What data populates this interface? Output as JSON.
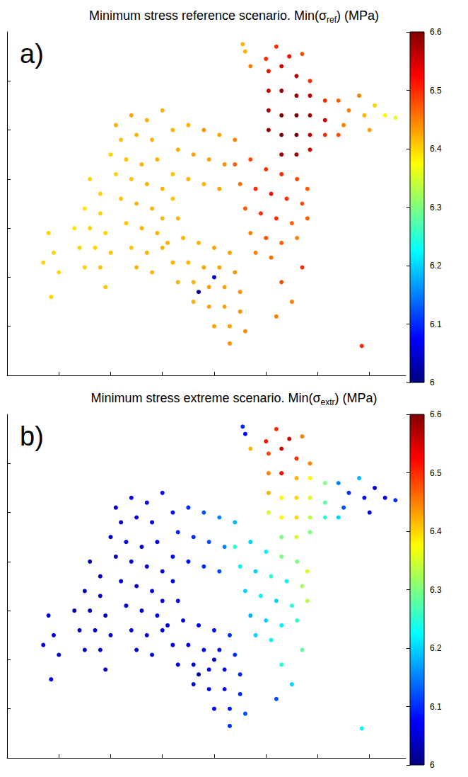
{
  "chart_data": [
    {
      "type": "scatter",
      "title": "Minimum stress reference scenario. Min(σref) (MPa)",
      "panel": "a)",
      "x": [
        5.05,
        5.3,
        5.59,
        5.85,
        5.05,
        5.3,
        5.59,
        5.85,
        6.14,
        5.05,
        5.3,
        5.59,
        5.85,
        6.14,
        5.05,
        5.3,
        5.59,
        5.85,
        6.14,
        5.3,
        5.59,
        5.85,
        5.2,
        5.45,
        5.7,
        5.0,
        4.7,
        6.4,
        6.6,
        6.8,
        6.9,
        7.1,
        7.3,
        7.5,
        6.5,
        7.0,
        6.4,
        4.4,
        4.7,
        5.0,
        5.3,
        5.6,
        5.8,
        4.5,
        4.8,
        5.1,
        5.4,
        5.7,
        4.6,
        4.9,
        5.2,
        5.5,
        5.8,
        4.7,
        5.0,
        5.3,
        5.6,
        4.8,
        5.1,
        5.3,
        5.7,
        5.5,
        6.85,
        5.2,
        3.2,
        3.5,
        3.8,
        4.1,
        4.4,
        3.3,
        3.6,
        3.9,
        4.2,
        3.2,
        3.5,
        3.8,
        4.1,
        3.2,
        3.3,
        4.55,
        4.6,
        2.1,
        2.4,
        2.7,
        3.0,
        2.2,
        2.5,
        2.8,
        2.0,
        2.3,
        2.6,
        2.9,
        2.1,
        2.4,
        2.7,
        3.0,
        2.2,
        2.5,
        2.8,
        3.0,
        2.3,
        2.6,
        2.9,
        2.4,
        2.7,
        3.0,
        2.5,
        2.8,
        1.6,
        1.8,
        1.5,
        1.8,
        1.3,
        1.6,
        1.9,
        1.4,
        1.7,
        2.0,
        1.5,
        1.8,
        0.8,
        0.9,
        1.0,
        0.7,
        1.9,
        0.85,
        3.1,
        3.4,
        3.7,
        4.0,
        4.3,
        3.2,
        3.5,
        3.8,
        4.1,
        4.4,
        3.3,
        3.6,
        3.9,
        4.2,
        4.5,
        3.6,
        3.9,
        4.2,
        4.5,
        4.0,
        4.3,
        4.6,
        4.3,
        3.7,
        4.0
      ],
      "y": [
        6.2,
        6.3,
        6.1,
        6.0,
        5.8,
        5.8,
        5.7,
        5.7,
        5.6,
        5.4,
        5.3,
        5.3,
        5.3,
        5.2,
        5.0,
        4.9,
        4.9,
        4.9,
        4.9,
        4.5,
        4.5,
        4.6,
        6.7,
        6.5,
        6.55,
        6.45,
        6.3,
        5.6,
        5.4,
        5.7,
        5.3,
        5.5,
        5.3,
        5.25,
        5.1,
        5.0,
        4.9,
        4.3,
        4.4,
        4.2,
        4.1,
        4.0,
        3.8,
        3.9,
        3.8,
        3.7,
        3.6,
        3.5,
        3.4,
        3.3,
        3.2,
        3.1,
        3.2,
        2.9,
        2.8,
        2.7,
        2.8,
        2.5,
        2.4,
        1.9,
        2.2,
        1.5,
        0.6,
        1.2,
        5.0,
        5.1,
        5.0,
        4.9,
        4.8,
        4.6,
        4.5,
        4.4,
        4.3,
        4.1,
        4.0,
        3.9,
        3.8,
        3.6,
        3.2,
        6.75,
        6.6,
        5.1,
        5.3,
        5.2,
        5.4,
        4.8,
        4.9,
        4.8,
        4.5,
        4.4,
        4.3,
        4.4,
        4.1,
        4.0,
        3.9,
        3.8,
        3.6,
        3.5,
        3.4,
        3.2,
        3.1,
        3.0,
        2.9,
        2.6,
        2.5,
        2.6,
        2.2,
        2.1,
        4.0,
        3.7,
        3.4,
        3.3,
        3.0,
        3.0,
        2.9,
        2.6,
        2.6,
        2.5,
        2.2,
        2.2,
        2.9,
        2.5,
        2.1,
        2.3,
        1.8,
        1.6,
        2.7,
        2.8,
        2.7,
        2.6,
        2.5,
        2.3,
        2.3,
        2.2,
        2.2,
        2.1,
        1.9,
        1.9,
        1.8,
        1.8,
        1.7,
        1.5,
        1.4,
        1.4,
        1.3,
        1.0,
        1.0,
        0.9,
        0.65,
        1.7,
        2.0
      ],
      "values": [
        6.52,
        6.55,
        6.56,
        6.5,
        6.56,
        6.58,
        6.58,
        6.57,
        6.5,
        6.57,
        6.6,
        6.6,
        6.58,
        6.55,
        6.58,
        6.6,
        6.6,
        6.57,
        6.5,
        6.58,
        6.58,
        6.55,
        6.5,
        6.52,
        6.48,
        6.5,
        6.45,
        6.47,
        6.45,
        6.45,
        6.42,
        6.4,
        6.38,
        6.36,
        6.45,
        6.43,
        6.48,
        6.47,
        6.48,
        6.5,
        6.5,
        6.48,
        6.47,
        6.46,
        6.5,
        6.52,
        6.5,
        6.48,
        6.47,
        6.5,
        6.5,
        6.47,
        6.47,
        6.45,
        6.48,
        6.47,
        6.45,
        6.45,
        6.46,
        6.48,
        6.5,
        6.45,
        6.5,
        6.45,
        6.42,
        6.42,
        6.44,
        6.43,
        6.45,
        6.42,
        6.43,
        6.43,
        6.44,
        6.41,
        6.42,
        6.42,
        6.43,
        6.41,
        6.42,
        6.42,
        6.42,
        6.42,
        6.43,
        6.42,
        6.42,
        6.41,
        6.42,
        6.42,
        6.4,
        6.41,
        6.42,
        6.42,
        6.4,
        6.41,
        6.42,
        6.42,
        6.41,
        6.42,
        6.42,
        6.42,
        6.41,
        6.42,
        6.42,
        6.41,
        6.42,
        6.42,
        6.42,
        6.42,
        6.4,
        6.4,
        6.39,
        6.4,
        6.39,
        6.4,
        6.4,
        6.4,
        6.4,
        6.41,
        6.4,
        6.41,
        6.4,
        6.4,
        6.4,
        6.4,
        6.41,
        6.4,
        6.42,
        6.42,
        6.42,
        6.43,
        6.43,
        6.42,
        6.42,
        6.43,
        6.43,
        6.44,
        6.42,
        6.42,
        6.43,
        6.43,
        6.44,
        6.42,
        6.43,
        6.43,
        6.44,
        6.43,
        6.43,
        6.44,
        6.44,
        6.02,
        6.05
      ],
      "xlim": [
        0,
        7.7
      ],
      "ylim": [
        0,
        7
      ],
      "xticks": [
        1,
        2,
        3,
        4,
        5,
        6,
        7
      ],
      "yticks": [
        1,
        2,
        3,
        4,
        5,
        6
      ],
      "tick_labels": false,
      "clim": [
        6,
        6.6
      ],
      "cticks": [
        6,
        6.1,
        6.2,
        6.3,
        6.4,
        6.5,
        6.6
      ]
    },
    {
      "type": "scatter",
      "title": "Minimum stress extreme scenario. Min(σextr) (MPa)",
      "panel": "b)",
      "x": [
        5.05,
        5.3,
        5.59,
        5.85,
        5.05,
        5.3,
        5.59,
        5.85,
        6.14,
        5.05,
        5.3,
        5.59,
        5.85,
        6.14,
        5.05,
        5.3,
        5.59,
        5.85,
        6.14,
        5.3,
        5.59,
        5.85,
        5.2,
        5.45,
        5.7,
        5.0,
        4.7,
        6.4,
        6.6,
        6.8,
        6.9,
        7.1,
        7.3,
        7.5,
        6.5,
        7.0,
        6.4,
        4.4,
        4.7,
        5.0,
        5.3,
        5.6,
        5.8,
        4.5,
        4.8,
        5.1,
        5.4,
        5.7,
        4.6,
        4.9,
        5.2,
        5.5,
        5.8,
        4.7,
        5.0,
        5.3,
        5.6,
        4.8,
        5.1,
        5.3,
        5.7,
        5.5,
        6.85,
        5.2,
        3.2,
        3.5,
        3.8,
        4.1,
        4.4,
        3.3,
        3.6,
        3.9,
        4.2,
        3.2,
        3.5,
        3.8,
        4.1,
        3.2,
        3.3,
        4.55,
        4.6,
        2.1,
        2.4,
        2.7,
        3.0,
        2.2,
        2.5,
        2.8,
        2.0,
        2.3,
        2.6,
        2.9,
        2.1,
        2.4,
        2.7,
        3.0,
        2.2,
        2.5,
        2.8,
        3.0,
        2.3,
        2.6,
        2.9,
        2.4,
        2.7,
        3.0,
        2.5,
        2.8,
        1.6,
        1.8,
        1.5,
        1.8,
        1.3,
        1.6,
        1.9,
        1.4,
        1.7,
        2.0,
        1.5,
        1.8,
        0.8,
        0.9,
        1.0,
        0.7,
        1.9,
        0.85,
        3.1,
        3.4,
        3.7,
        4.0,
        4.3,
        3.2,
        3.5,
        3.8,
        4.1,
        4.4,
        3.3,
        3.6,
        3.9,
        4.2,
        4.5,
        3.6,
        3.9,
        4.2,
        4.5,
        4.0,
        4.3,
        4.6,
        4.3,
        3.7,
        4.0
      ],
      "y": [
        6.2,
        6.3,
        6.1,
        6.0,
        5.8,
        5.8,
        5.7,
        5.7,
        5.6,
        5.4,
        5.3,
        5.3,
        5.3,
        5.2,
        5.0,
        4.9,
        4.9,
        4.9,
        4.9,
        4.5,
        4.5,
        4.6,
        6.7,
        6.5,
        6.55,
        6.45,
        6.3,
        5.6,
        5.4,
        5.7,
        5.3,
        5.5,
        5.3,
        5.25,
        5.1,
        5.0,
        4.9,
        4.3,
        4.4,
        4.2,
        4.1,
        4.0,
        3.8,
        3.9,
        3.8,
        3.7,
        3.6,
        3.5,
        3.4,
        3.3,
        3.2,
        3.1,
        3.2,
        2.9,
        2.8,
        2.7,
        2.8,
        2.5,
        2.4,
        1.9,
        2.2,
        1.5,
        0.6,
        1.2,
        5.0,
        5.1,
        5.0,
        4.9,
        4.8,
        4.6,
        4.5,
        4.4,
        4.3,
        4.1,
        4.0,
        3.9,
        3.8,
        3.6,
        3.2,
        6.75,
        6.6,
        5.1,
        5.3,
        5.2,
        5.4,
        4.8,
        4.9,
        4.8,
        4.5,
        4.4,
        4.3,
        4.4,
        4.1,
        4.0,
        3.9,
        3.8,
        3.6,
        3.5,
        3.4,
        3.2,
        3.1,
        3.0,
        2.9,
        2.6,
        2.5,
        2.6,
        2.2,
        2.1,
        4.0,
        3.7,
        3.4,
        3.3,
        3.0,
        3.0,
        2.9,
        2.6,
        2.6,
        2.5,
        2.2,
        2.2,
        2.9,
        2.5,
        2.1,
        2.3,
        1.8,
        1.6,
        2.7,
        2.8,
        2.7,
        2.6,
        2.5,
        2.3,
        2.3,
        2.2,
        2.2,
        2.1,
        1.9,
        1.9,
        1.8,
        1.8,
        1.7,
        1.5,
        1.4,
        1.4,
        1.3,
        1.0,
        1.0,
        0.9,
        0.65,
        1.7,
        2.0
      ],
      "values": [
        6.48,
        6.55,
        6.5,
        6.45,
        6.45,
        6.52,
        6.42,
        6.38,
        6.3,
        6.42,
        6.38,
        6.4,
        6.35,
        6.28,
        6.35,
        6.38,
        6.4,
        6.33,
        6.25,
        6.3,
        6.35,
        6.3,
        6.5,
        6.55,
        6.45,
        6.52,
        6.42,
        6.15,
        6.1,
        6.18,
        6.08,
        6.05,
        6.06,
        6.1,
        6.12,
        6.05,
        6.2,
        6.25,
        6.2,
        6.22,
        6.3,
        6.3,
        6.35,
        6.22,
        6.2,
        6.25,
        6.22,
        6.32,
        6.2,
        6.22,
        6.2,
        6.25,
        6.33,
        6.18,
        6.2,
        6.22,
        6.25,
        6.2,
        6.22,
        6.25,
        6.28,
        6.2,
        6.22,
        6.12,
        6.08,
        6.1,
        6.12,
        6.15,
        6.18,
        6.1,
        6.1,
        6.12,
        6.15,
        6.08,
        6.08,
        6.1,
        6.12,
        6.07,
        6.08,
        6.1,
        6.08,
        6.05,
        6.07,
        6.06,
        6.08,
        6.05,
        6.06,
        6.07,
        6.04,
        6.05,
        6.05,
        6.06,
        6.04,
        6.05,
        6.05,
        6.06,
        6.05,
        6.05,
        6.06,
        6.07,
        6.05,
        6.05,
        6.06,
        6.05,
        6.06,
        6.07,
        6.05,
        6.06,
        6.03,
        6.04,
        6.03,
        6.04,
        6.03,
        6.04,
        6.05,
        6.04,
        6.04,
        6.05,
        6.04,
        6.05,
        6.05,
        6.06,
        6.05,
        6.05,
        6.05,
        6.06,
        6.06,
        6.06,
        6.07,
        6.08,
        6.1,
        6.06,
        6.06,
        6.07,
        6.08,
        6.1,
        6.06,
        6.06,
        6.07,
        6.08,
        6.1,
        6.06,
        6.07,
        6.08,
        6.1,
        6.08,
        6.09,
        6.12,
        6.1,
        6.02,
        6.04
      ],
      "xlim": [
        0,
        7.7
      ],
      "ylim": [
        0,
        7
      ],
      "xticks": [
        1,
        2,
        3,
        4,
        5,
        6,
        7
      ],
      "yticks": [
        1,
        2,
        3,
        4,
        5,
        6
      ],
      "tick_labels": false,
      "clim": [
        6,
        6.6
      ],
      "cticks": [
        6,
        6.1,
        6.2,
        6.3,
        6.4,
        6.5,
        6.6
      ]
    }
  ]
}
